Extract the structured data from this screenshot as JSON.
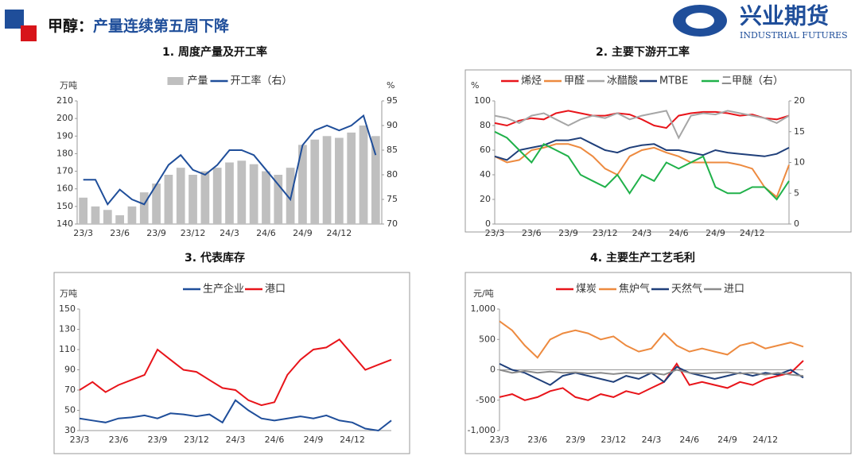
{
  "header": {
    "title_prefix": "甲醇：",
    "title": "产量连续第五周下降",
    "logo_cn": "兴业期货",
    "logo_en": "INDUSTRIAL FUTURES"
  },
  "chart_data": [
    {
      "type": "combo",
      "title": "1. 周度产量及开工率",
      "y_label": "万吨",
      "y2_label": "%",
      "categories": [
        "23/3",
        null,
        null,
        "23/6",
        null,
        null,
        "23/9",
        null,
        null,
        "23/12",
        null,
        null,
        "24/3",
        null,
        null,
        "24/6",
        null,
        null,
        "24/9",
        null,
        null,
        "24/12",
        null,
        null,
        null
      ],
      "series": [
        {
          "name": "产量",
          "type": "bar",
          "color": "#bfbfbf",
          "values": [
            155,
            150,
            148,
            145,
            150,
            158,
            163,
            168,
            172,
            168,
            170,
            172,
            175,
            176,
            174,
            170,
            168,
            172,
            185,
            188,
            190,
            189,
            192,
            196,
            190
          ]
        },
        {
          "name": "开工率（右）",
          "type": "line",
          "axis": "y2",
          "color": "#1f4e9a",
          "values": [
            79,
            79,
            74,
            77,
            75,
            74,
            78,
            82,
            84,
            81,
            80,
            82,
            85,
            85,
            84,
            81,
            78,
            75,
            86,
            89,
            90,
            89,
            90,
            92,
            84
          ]
        }
      ],
      "ylim": [
        140,
        210
      ],
      "yticks": [
        140,
        150,
        160,
        170,
        180,
        190,
        200,
        210
      ],
      "y2lim": [
        70,
        95
      ],
      "y2ticks": [
        70,
        75,
        80,
        85,
        90,
        95
      ]
    },
    {
      "type": "line",
      "title": "2. 主要下游开工率",
      "y_label": "%",
      "categories": [
        "23/3",
        null,
        null,
        "23/6",
        null,
        null,
        "23/9",
        null,
        null,
        "23/12",
        null,
        null,
        "24/3",
        null,
        null,
        "24/6",
        null,
        null,
        "24/9",
        null,
        null,
        "24/12",
        null,
        null,
        null
      ],
      "series": [
        {
          "name": "烯烃",
          "color": "#e8141a",
          "values": [
            82,
            80,
            84,
            86,
            85,
            90,
            92,
            90,
            88,
            88,
            90,
            89,
            85,
            80,
            78,
            88,
            90,
            91,
            91,
            90,
            88,
            89,
            86,
            85,
            88
          ]
        },
        {
          "name": "甲醛",
          "color": "#ed8a3f",
          "values": [
            55,
            50,
            52,
            60,
            62,
            65,
            65,
            62,
            55,
            45,
            40,
            55,
            60,
            62,
            58,
            55,
            50,
            50,
            50,
            50,
            48,
            45,
            30,
            22,
            48
          ]
        },
        {
          "name": "冰醋酸",
          "color": "#a6a6a6",
          "values": [
            88,
            86,
            82,
            88,
            90,
            85,
            80,
            85,
            88,
            86,
            90,
            85,
            88,
            90,
            92,
            70,
            88,
            90,
            89,
            92,
            90,
            88,
            86,
            82,
            88
          ]
        },
        {
          "name": "MTBE",
          "color": "#1f3f7a",
          "values": [
            55,
            52,
            60,
            62,
            64,
            68,
            68,
            70,
            65,
            60,
            58,
            62,
            64,
            65,
            60,
            60,
            58,
            56,
            60,
            58,
            57,
            56,
            55,
            57,
            62
          ]
        },
        {
          "name": "二甲醚（右）",
          "axis": "y2",
          "color": "#20b14a",
          "values": [
            15,
            14,
            12,
            10,
            13,
            12,
            11,
            8,
            7,
            6,
            8,
            5,
            8,
            7,
            10,
            9,
            10,
            11,
            6,
            5,
            5,
            6,
            6,
            4,
            7
          ]
        }
      ],
      "ylim": [
        0,
        100
      ],
      "yticks": [
        0,
        20,
        40,
        60,
        80,
        100
      ],
      "y2lim": [
        0,
        20
      ],
      "y2ticks": [
        0,
        5,
        10,
        15,
        20
      ]
    },
    {
      "type": "line",
      "title": "3. 代表库存",
      "y_label": "万吨",
      "categories": [
        "23/3",
        null,
        null,
        "23/6",
        null,
        null,
        "23/9",
        null,
        null,
        "23/12",
        null,
        null,
        "24/3",
        null,
        null,
        "24/6",
        null,
        null,
        "24/9",
        null,
        null,
        "24/12",
        null,
        null,
        null
      ],
      "series": [
        {
          "name": "生产企业",
          "color": "#1f4e9a",
          "values": [
            42,
            40,
            38,
            42,
            43,
            45,
            42,
            47,
            46,
            44,
            46,
            38,
            60,
            50,
            42,
            40,
            42,
            44,
            42,
            45,
            40,
            38,
            32,
            30,
            40
          ]
        },
        {
          "name": "港口",
          "color": "#e8141a",
          "values": [
            70,
            78,
            68,
            75,
            80,
            85,
            110,
            100,
            90,
            88,
            80,
            72,
            70,
            60,
            55,
            58,
            85,
            100,
            110,
            112,
            120,
            105,
            90,
            95,
            100
          ]
        }
      ],
      "ylim": [
        30,
        150
      ],
      "yticks": [
        30,
        50,
        70,
        90,
        110,
        130,
        150
      ]
    },
    {
      "type": "line",
      "title": "4. 主要生产工艺毛利",
      "y_label": "元/吨",
      "categories": [
        "23/3",
        null,
        null,
        "23/6",
        null,
        null,
        "23/9",
        null,
        null,
        "23/12",
        null,
        null,
        "24/3",
        null,
        null,
        "24/6",
        null,
        null,
        "24/9",
        null,
        null,
        "24/12",
        null,
        null,
        null
      ],
      "series": [
        {
          "name": "煤炭",
          "color": "#e8141a",
          "values": [
            -450,
            -400,
            -500,
            -450,
            -350,
            -300,
            -450,
            -500,
            -400,
            -450,
            -350,
            -400,
            -300,
            -200,
            100,
            -250,
            -200,
            -250,
            -300,
            -200,
            -250,
            -150,
            -100,
            -50,
            150
          ]
        },
        {
          "name": "焦炉气",
          "color": "#ed8a3f",
          "values": [
            800,
            650,
            400,
            200,
            500,
            600,
            650,
            600,
            500,
            550,
            400,
            300,
            350,
            600,
            400,
            300,
            350,
            300,
            250,
            400,
            450,
            350,
            400,
            450,
            380
          ]
        },
        {
          "name": "天然气",
          "color": "#1f3f7a",
          "values": [
            100,
            0,
            -50,
            -150,
            -250,
            -100,
            -50,
            -100,
            -150,
            -200,
            -100,
            -150,
            -50,
            -200,
            50,
            -50,
            -100,
            -150,
            -100,
            -50,
            -100,
            -50,
            -80,
            0,
            -130
          ]
        },
        {
          "name": "进口",
          "color": "#8c8c8c",
          "values": [
            0,
            -50,
            -20,
            -50,
            -30,
            -50,
            -40,
            -60,
            -50,
            -70,
            -50,
            -60,
            -50,
            -80,
            0,
            -50,
            -60,
            -50,
            -40,
            -60,
            -50,
            -80,
            -50,
            -80,
            -100
          ]
        }
      ],
      "ylim": [
        -1000,
        1000
      ],
      "yticks": [
        {
          "value": -1000,
          "label": "-1,000"
        },
        -500,
        0,
        500,
        {
          "value": 1000,
          "label": "1,000"
        }
      ]
    }
  ]
}
